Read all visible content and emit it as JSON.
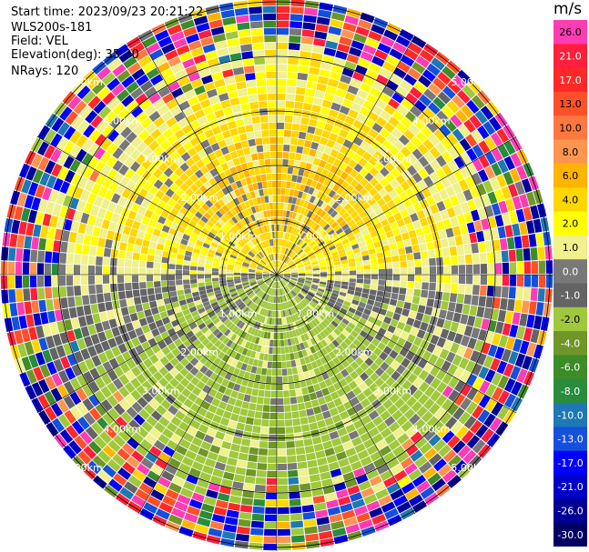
{
  "header": {
    "start_time": "Start time: 2023/09/23 20:21:22",
    "instrument": "WLS200s-181",
    "field": "Field: VEL",
    "elevation": "Elevation(deg): 35.30",
    "nrays": "NRays: 120"
  },
  "colorbar": {
    "unit": "m/s",
    "levels": [
      "26.0",
      "21.0",
      "17.0",
      "13.0",
      "10.0",
      "8.0",
      "6.0",
      "4.0",
      "2.0",
      "1.0",
      "0.0",
      "-1.0",
      "-2.0",
      "-4.0",
      "-6.0",
      "-8.0",
      "-10.0",
      "-13.0",
      "-17.0",
      "-21.0",
      "-26.0",
      "-30.0"
    ],
    "colors": [
      "#ff3cb4",
      "#ff1e3c",
      "#ff2828",
      "#ff5028",
      "#ff7840",
      "#ff9650",
      "#ffb400",
      "#ffd700",
      "#ffff00",
      "#f0f08c",
      "#787878",
      "#646464",
      "#a0c83c",
      "#6e9628",
      "#3c8c28",
      "#288c3c",
      "#1e78b4",
      "#1450dc",
      "#0000ff",
      "#0000c8",
      "#000096",
      "#000064"
    ]
  },
  "chart_data": {
    "type": "heatmap",
    "projection": "polar (PPI)",
    "field": "VEL",
    "unit": "m/s",
    "nrays": 120,
    "range_rings_km": [
      1.0,
      2.0,
      3.0,
      4.0,
      5.0
    ],
    "ring_labels": [
      "1.00km",
      "2.00km",
      "3.00km",
      "4.00km",
      "5.00km"
    ],
    "value_scale": [
      -30,
      26
    ],
    "pattern": {
      "north_sector": "positive velocities 2–8 m/s (yellow/orange) near range 0.5–3 km",
      "south_sector": "negative velocities -1 to -6 m/s (green) near range 0–4 km",
      "east_west": "near 0 m/s (gray)",
      "outer_ranges": "noisy, full color spectrum beyond ~4 km"
    }
  }
}
